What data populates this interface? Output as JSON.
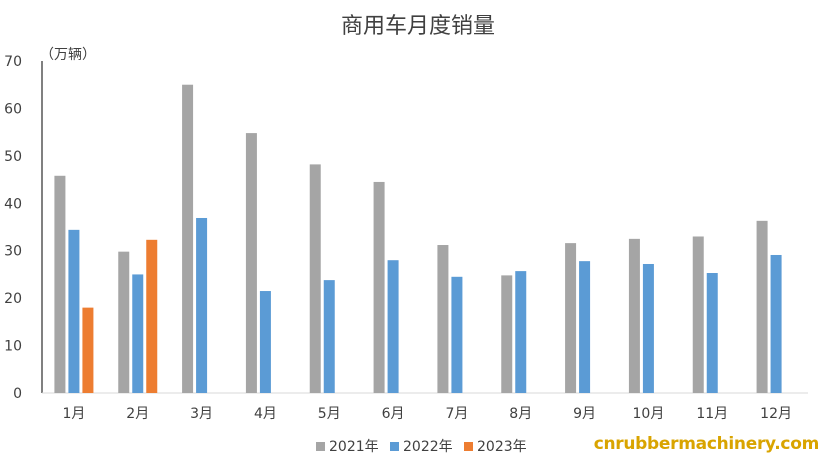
{
  "chart_data": {
    "type": "bar",
    "title": "商用车月度销量",
    "unit_label": "（万辆）",
    "categories": [
      "1月",
      "2月",
      "3月",
      "4月",
      "5月",
      "6月",
      "7月",
      "8月",
      "9月",
      "10月",
      "11月",
      "12月"
    ],
    "series": [
      {
        "name": "2021年",
        "color": "#a5a5a5",
        "values": [
          45.8,
          29.8,
          65.0,
          54.8,
          48.2,
          44.5,
          31.2,
          24.8,
          31.6,
          32.5,
          33.0,
          36.3
        ]
      },
      {
        "name": "2022年",
        "color": "#5b9bd5",
        "values": [
          34.4,
          25.0,
          36.9,
          21.5,
          23.8,
          28.0,
          24.5,
          25.7,
          27.8,
          27.2,
          25.3,
          29.1
        ]
      },
      {
        "name": "2023年",
        "color": "#ed7d31",
        "values": [
          18.0,
          32.3,
          null,
          null,
          null,
          null,
          null,
          null,
          null,
          null,
          null,
          null
        ]
      }
    ],
    "yticks": [
      0,
      10,
      20,
      30,
      40,
      50,
      60,
      70
    ],
    "ylim": [
      0,
      70
    ],
    "grid": false,
    "legend_position": "bottom"
  },
  "watermark": "cnrubbermachinery.com"
}
